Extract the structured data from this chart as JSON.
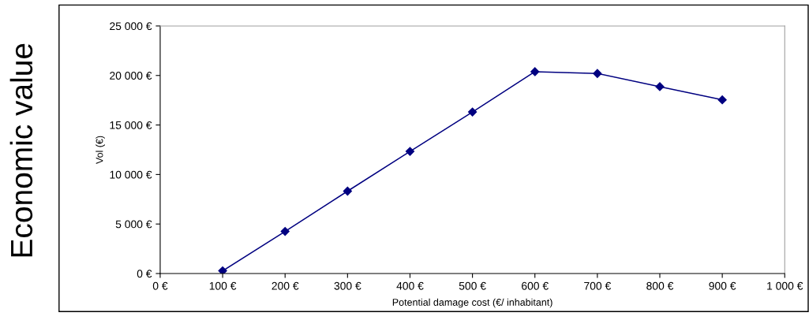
{
  "chart_data": {
    "type": "line",
    "xlabel": "Potential damage cost (€/ inhabitant)",
    "ylabel": "Vol (€)",
    "annotations": [
      "Economic value"
    ],
    "x": [
      100,
      200,
      300,
      400,
      500,
      600,
      700,
      800,
      900
    ],
    "series": [
      {
        "color": "#000080",
        "values": [
          270,
          4250,
          8320,
          12330,
          16310,
          20380,
          20200,
          18870,
          17540
        ]
      }
    ],
    "xlim": [
      0,
      1000
    ],
    "xticks": [
      {
        "value": 0,
        "label": "0 €"
      },
      {
        "value": 100,
        "label": "100 €"
      },
      {
        "value": 200,
        "label": "200 €"
      },
      {
        "value": 300,
        "label": "300 €"
      },
      {
        "value": 400,
        "label": "400 €"
      },
      {
        "value": 500,
        "label": "500 €"
      },
      {
        "value": 600,
        "label": "600 €"
      },
      {
        "value": 700,
        "label": "700 €"
      },
      {
        "value": 800,
        "label": "800 €"
      },
      {
        "value": 900,
        "label": "900 €"
      },
      {
        "value": 1000,
        "label": "1 000 €"
      }
    ],
    "ylim": [
      0,
      25000
    ],
    "yticks": [
      {
        "value": 0,
        "label": "0 €"
      },
      {
        "value": 5000,
        "label": "5 000 €"
      },
      {
        "value": 10000,
        "label": "10 000 €"
      },
      {
        "value": 15000,
        "label": "15 000 €"
      },
      {
        "value": 20000,
        "label": "20 000 €"
      },
      {
        "value": 25000,
        "label": "25 000 €"
      }
    ],
    "marker": "diamond",
    "line_style": "solid",
    "grid": false,
    "legend": false
  }
}
